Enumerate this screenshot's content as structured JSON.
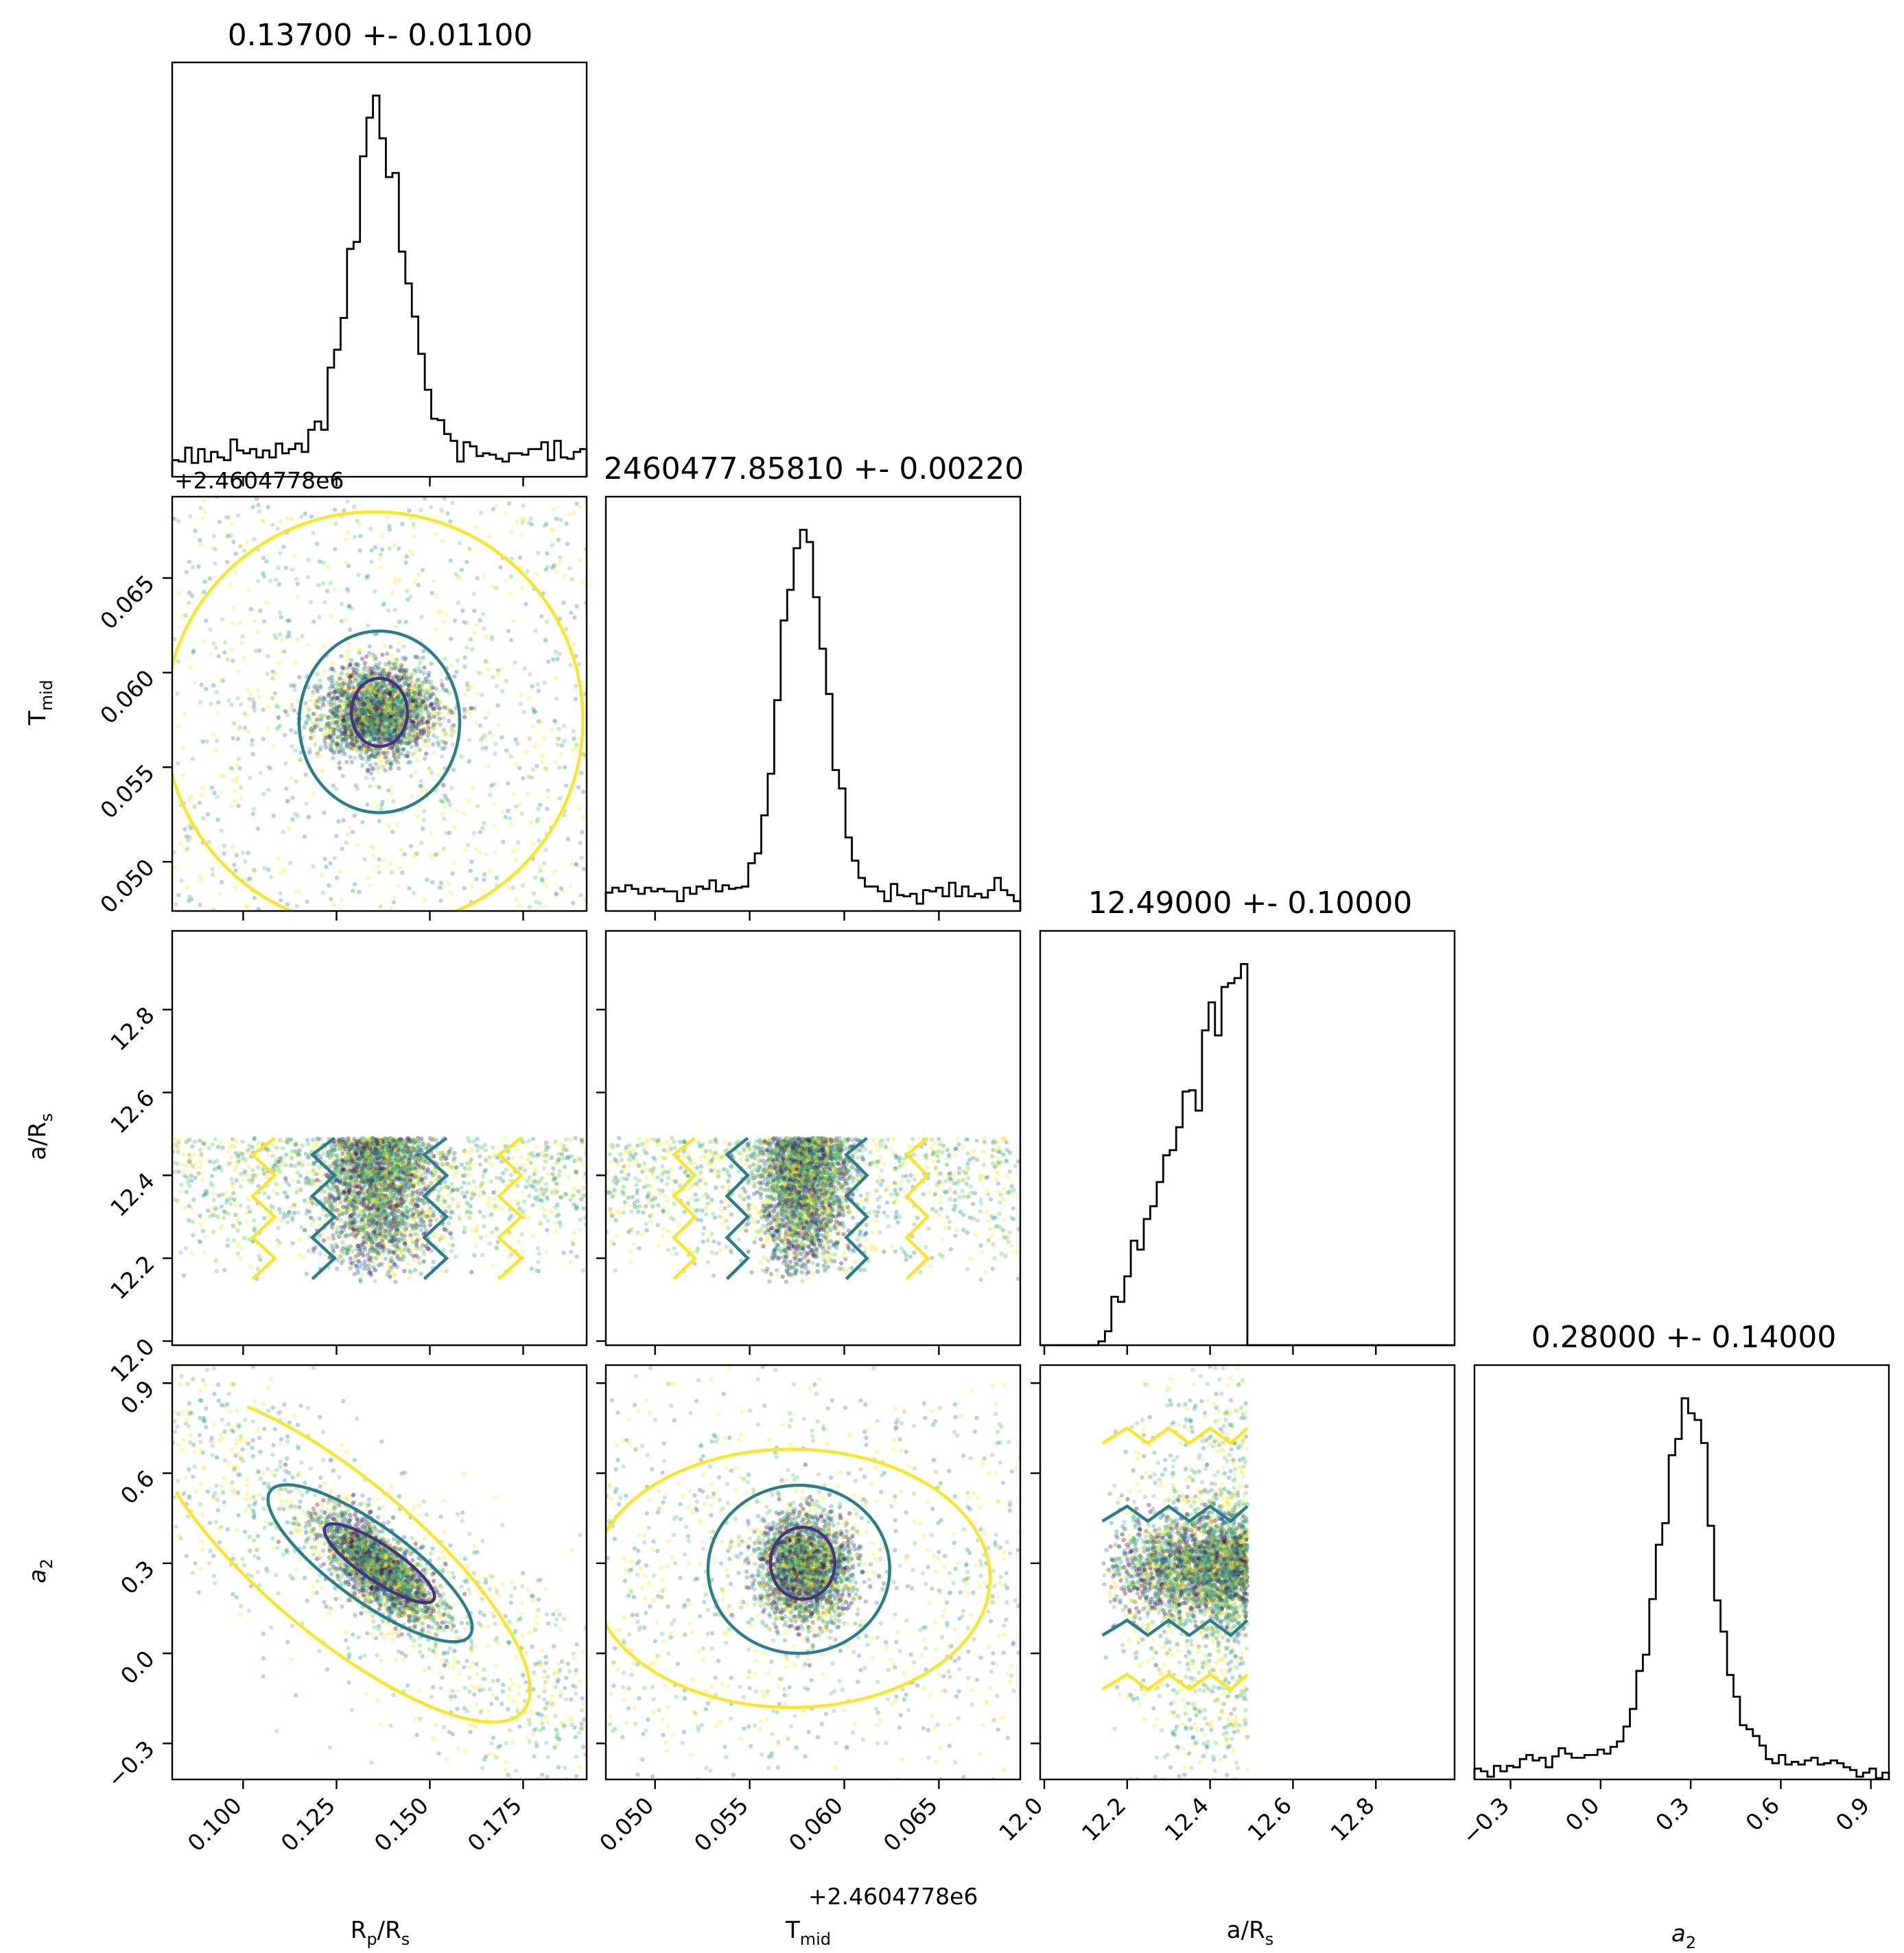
{
  "chart_data": {
    "type": "corner",
    "parameters": [
      "R_p/R_s",
      "T_mid",
      "a/R_s",
      "a_2"
    ],
    "labels": {
      "rp": {
        "main": "R",
        "sub": "p",
        "rest": "/R",
        "sub2": "s"
      },
      "tmid": {
        "main": "T",
        "sub": "mid"
      },
      "ars": {
        "main": "a/R",
        "sub": "s"
      },
      "a2": {
        "main": "a",
        "sub": "2"
      }
    },
    "titles": {
      "rp": "0.13700 +- 0.01100",
      "tmid": "2460477.85810 +- 0.00220",
      "ars": "12.49000 +- 0.10000",
      "a2": "0.28000 +- 0.14000"
    },
    "offset_text": {
      "tmid_y": "+2.4604778e6",
      "tmid_x": "+2.4604778e6"
    },
    "ranges": {
      "rp": [
        0.081,
        0.192
      ],
      "tmid": [
        0.0474,
        0.0693
      ],
      "ars": [
        11.99,
        12.99
      ],
      "a2": [
        -0.42,
        0.96
      ]
    },
    "ticks": {
      "rp": [
        "0.100",
        "0.125",
        "0.150",
        "0.175"
      ],
      "tmid": [
        "0.050",
        "0.055",
        "0.060",
        "0.065"
      ],
      "ars": [
        "12.0",
        "12.2",
        "12.4",
        "12.6",
        "12.8"
      ],
      "a2": [
        "−0.3",
        "0.0",
        "0.3",
        "0.6",
        "0.9"
      ]
    },
    "tick_values": {
      "rp": [
        0.1,
        0.125,
        0.15,
        0.175
      ],
      "tmid": [
        0.05,
        0.055,
        0.06,
        0.065
      ],
      "ars": [
        12.0,
        12.2,
        12.4,
        12.6,
        12.8
      ],
      "a2": [
        -0.3,
        0.0,
        0.3,
        0.6,
        0.9
      ]
    },
    "posterior_summary": {
      "rp": {
        "mean": 0.137,
        "std": 0.011
      },
      "tmid": {
        "mean": 0.0581,
        "std": 0.0022
      },
      "ars": {
        "mean": 12.49,
        "std": 0.1
      },
      "a2": {
        "mean": 0.28,
        "std": 0.14
      }
    },
    "ars_prior_bounds": [
      12.14,
      12.49
    ],
    "colors": {
      "contour_inner": "#46327e",
      "contour_mid": "#277f8e",
      "contour_outer": "#fde725",
      "scatter_cmap": [
        "#440154",
        "#3b528b",
        "#21918c",
        "#5ec962",
        "#fde725"
      ],
      "hist": "#000000"
    }
  }
}
